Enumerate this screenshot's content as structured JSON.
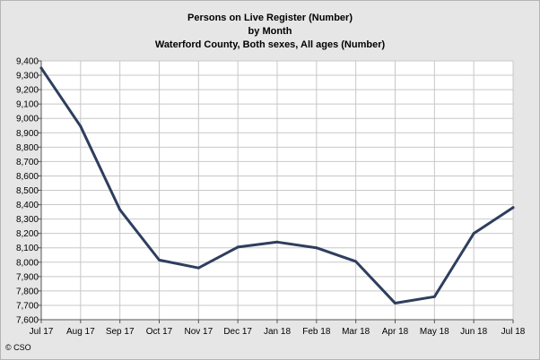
{
  "chart_data": {
    "type": "line",
    "title": [
      "Persons on Live Register (Number)",
      "by Month",
      "Waterford County, Both sexes, All ages (Number)"
    ],
    "xlabel": "",
    "ylabel": "",
    "categories": [
      "Jul 17",
      "Aug 17",
      "Sep 17",
      "Oct 17",
      "Nov 17",
      "Dec 17",
      "Jan 18",
      "Feb 18",
      "Mar 18",
      "Apr 18",
      "May 18",
      "Jun 18",
      "Jul 18"
    ],
    "series": [
      {
        "values": [
          9350,
          8945,
          8365,
          8015,
          7960,
          8105,
          8140,
          8100,
          8005,
          7715,
          7760,
          8200,
          8380
        ]
      }
    ],
    "ylim": [
      7600,
      9400
    ],
    "yticks": [
      7600,
      7700,
      7800,
      7900,
      8000,
      8100,
      8200,
      8300,
      8400,
      8500,
      8600,
      8700,
      8800,
      8900,
      9000,
      9100,
      9200,
      9300,
      9400
    ],
    "ytick_labels": [
      "7,600",
      "7,700",
      "7,800",
      "7,900",
      "8,000",
      "8,100",
      "8,200",
      "8,300",
      "8,400",
      "8,500",
      "8,600",
      "8,700",
      "8,800",
      "8,900",
      "9,000",
      "9,100",
      "9,200",
      "9,300",
      "9,400"
    ],
    "grid": true,
    "line_color": "#2e3e5e",
    "plot_background": "#ffffff",
    "frame_background": "#e6e6e6"
  },
  "credit": "© CSO"
}
